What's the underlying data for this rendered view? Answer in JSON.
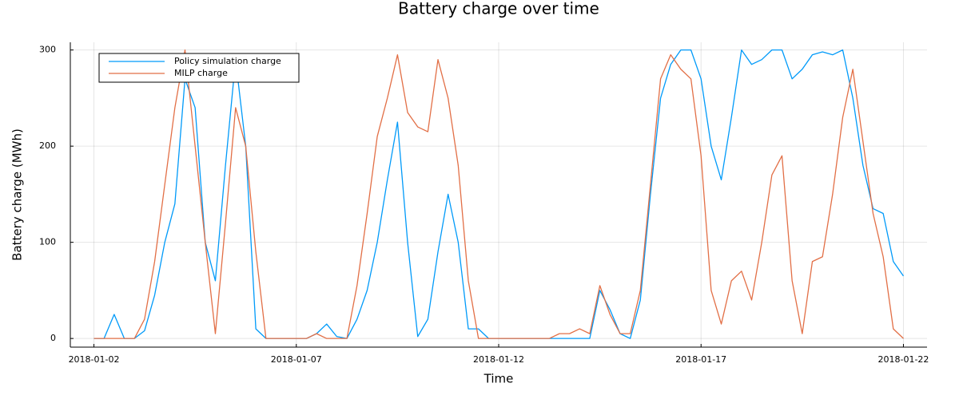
{
  "chart_data": {
    "type": "line",
    "title": "Battery charge over time",
    "x_label": "Time",
    "y_label": "Battery charge (MWh)",
    "x": [
      "2018-01-02T00:00",
      "2018-01-02T06:00",
      "2018-01-02T12:00",
      "2018-01-02T18:00",
      "2018-01-03T00:00",
      "2018-01-03T06:00",
      "2018-01-03T12:00",
      "2018-01-03T18:00",
      "2018-01-04T00:00",
      "2018-01-04T06:00",
      "2018-01-04T12:00",
      "2018-01-04T18:00",
      "2018-01-05T00:00",
      "2018-01-05T06:00",
      "2018-01-05T12:00",
      "2018-01-05T18:00",
      "2018-01-06T00:00",
      "2018-01-06T06:00",
      "2018-01-06T12:00",
      "2018-01-06T18:00",
      "2018-01-07T00:00",
      "2018-01-07T06:00",
      "2018-01-07T12:00",
      "2018-01-07T18:00",
      "2018-01-08T00:00",
      "2018-01-08T06:00",
      "2018-01-08T12:00",
      "2018-01-08T18:00",
      "2018-01-09T00:00",
      "2018-01-09T06:00",
      "2018-01-09T12:00",
      "2018-01-09T18:00",
      "2018-01-10T00:00",
      "2018-01-10T06:00",
      "2018-01-10T12:00",
      "2018-01-10T18:00",
      "2018-01-11T00:00",
      "2018-01-11T06:00",
      "2018-01-11T12:00",
      "2018-01-11T18:00",
      "2018-01-12T00:00",
      "2018-01-12T06:00",
      "2018-01-12T12:00",
      "2018-01-12T18:00",
      "2018-01-13T00:00",
      "2018-01-13T06:00",
      "2018-01-13T12:00",
      "2018-01-13T18:00",
      "2018-01-14T00:00",
      "2018-01-14T06:00",
      "2018-01-14T12:00",
      "2018-01-14T18:00",
      "2018-01-15T00:00",
      "2018-01-15T06:00",
      "2018-01-15T12:00",
      "2018-01-15T18:00",
      "2018-01-16T00:00",
      "2018-01-16T06:00",
      "2018-01-16T12:00",
      "2018-01-16T18:00",
      "2018-01-17T00:00",
      "2018-01-17T06:00",
      "2018-01-17T12:00",
      "2018-01-17T18:00",
      "2018-01-18T00:00",
      "2018-01-18T06:00",
      "2018-01-18T12:00",
      "2018-01-18T18:00",
      "2018-01-19T00:00",
      "2018-01-19T06:00",
      "2018-01-19T12:00",
      "2018-01-19T18:00",
      "2018-01-20T00:00",
      "2018-01-20T06:00",
      "2018-01-20T12:00",
      "2018-01-20T18:00",
      "2018-01-21T00:00",
      "2018-01-21T06:00",
      "2018-01-21T12:00",
      "2018-01-21T18:00",
      "2018-01-22T00:00"
    ],
    "series": [
      {
        "name": "Policy simulation charge",
        "color": "#009af9",
        "values": [
          0,
          0,
          25,
          0,
          0,
          8,
          45,
          100,
          140,
          270,
          240,
          100,
          60,
          180,
          290,
          200,
          10,
          0,
          0,
          0,
          0,
          0,
          5,
          15,
          2,
          0,
          20,
          50,
          100,
          165,
          225,
          100,
          2,
          20,
          90,
          150,
          100,
          10,
          10,
          0,
          0,
          0,
          0,
          0,
          0,
          0,
          0,
          0,
          0,
          0,
          50,
          30,
          5,
          0,
          40,
          150,
          250,
          285,
          300,
          300,
          270,
          200,
          165,
          230,
          300,
          285,
          290,
          300,
          300,
          270,
          280,
          295,
          298,
          295,
          300,
          250,
          180,
          135,
          130,
          80,
          65
        ]
      },
      {
        "name": "MILP charge",
        "color": "#e26f46",
        "values": [
          0,
          0,
          0,
          0,
          0,
          20,
          80,
          160,
          240,
          300,
          200,
          100,
          5,
          120,
          240,
          200,
          90,
          0,
          0,
          0,
          0,
          0,
          5,
          0,
          0,
          0,
          55,
          130,
          210,
          250,
          295,
          235,
          220,
          215,
          290,
          250,
          180,
          60,
          0,
          0,
          0,
          0,
          0,
          0,
          0,
          0,
          5,
          5,
          10,
          5,
          55,
          25,
          5,
          5,
          50,
          160,
          270,
          295,
          280,
          270,
          190,
          50,
          15,
          60,
          70,
          40,
          100,
          170,
          190,
          60,
          5,
          80,
          85,
          150,
          230,
          280,
          205,
          130,
          85,
          10,
          0
        ]
      }
    ],
    "xlim": [
      "2018-01-01T10:00",
      "2018-01-22T14:00"
    ],
    "xticks": [
      "2018-01-02",
      "2018-01-07",
      "2018-01-12",
      "2018-01-17",
      "2018-01-22"
    ],
    "ylim": [
      -9,
      308
    ],
    "yticks": [
      0,
      100,
      200,
      300
    ],
    "grid": true,
    "legend": "top left"
  }
}
